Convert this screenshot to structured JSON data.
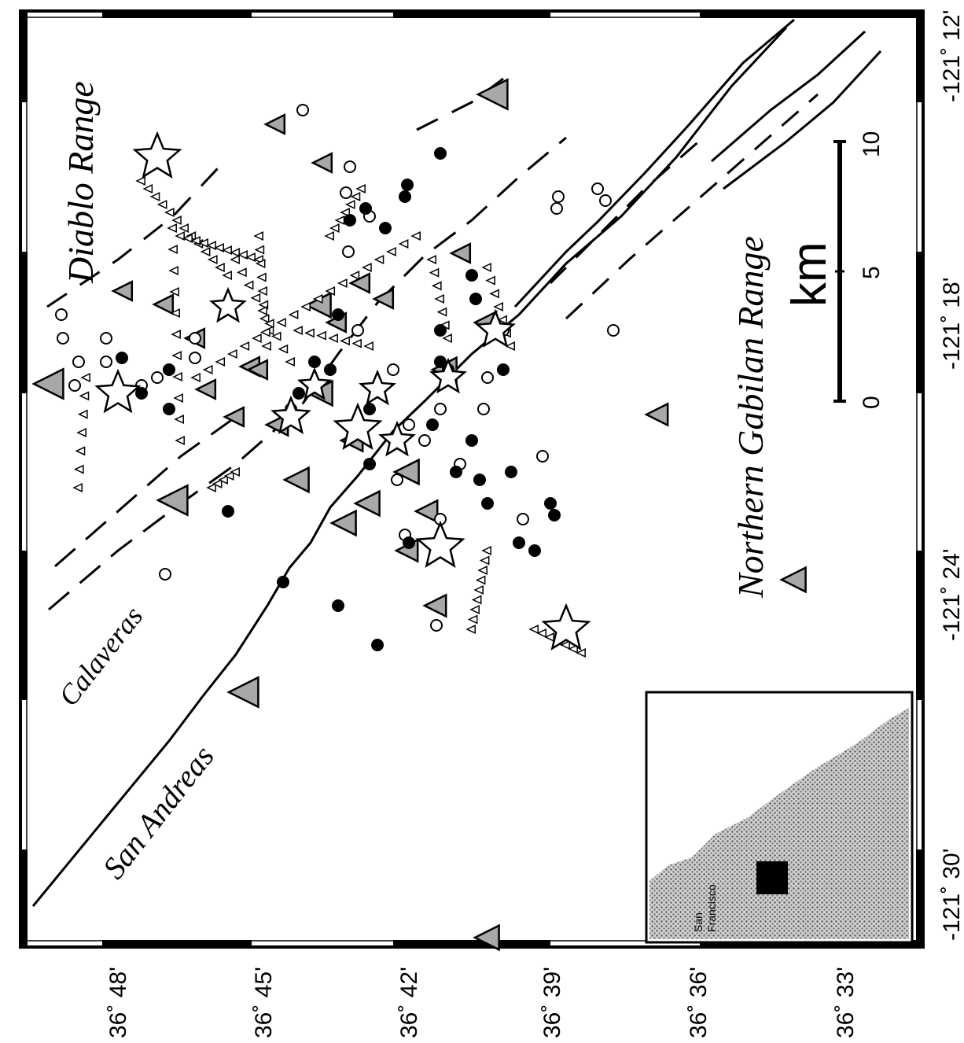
{
  "map": {
    "region_labels": {
      "diablo": "Diablo Range",
      "gabilan": "Northern Gabilan Range"
    },
    "fault_labels": {
      "san_andreas": "San Andreas",
      "calaveras": "Calaveras"
    },
    "longitude_ticks": [
      "-121˚ 30'",
      "-121˚ 24'",
      "-121˚ 18'",
      "-121˚ 12'"
    ],
    "latitude_ticks": [
      "36˚ 48'",
      "36˚ 45'",
      "36˚ 42'",
      "36˚ 39'",
      "36˚ 36'",
      "36˚ 33'"
    ],
    "scale_bar": {
      "unit": "km",
      "labels": [
        "0",
        "5",
        "10"
      ]
    },
    "inset": {
      "city_label_1": "San",
      "city_label_2": "Francisco"
    },
    "colors": {
      "ink": "#000000",
      "station_fill": "#a8a8a8",
      "land_fill": "#9a9a9a"
    }
  }
}
